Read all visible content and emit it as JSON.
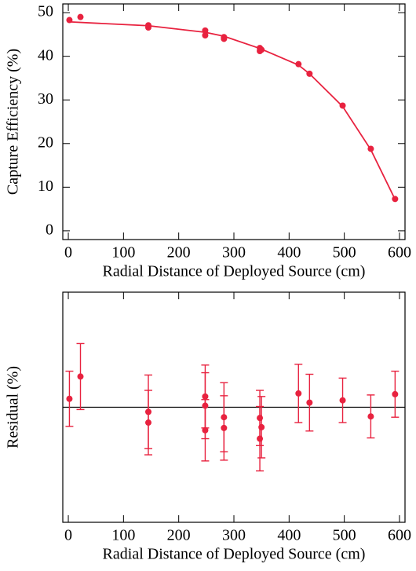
{
  "chart_data": [
    {
      "type": "scatter",
      "ylabel": "Capture Efficiency (%)",
      "xlabel": "Radial Distance of Deployed Source (cm)",
      "color": "#e8223f",
      "xlim": [
        -10,
        610
      ],
      "xticks": [
        0,
        100,
        200,
        300,
        400,
        500,
        600
      ],
      "ylim": [
        -2,
        52
      ],
      "yticks": [
        0,
        10,
        20,
        30,
        40,
        50
      ],
      "points": {
        "x": [
          2,
          22,
          145,
          145,
          248,
          248,
          282,
          282,
          347,
          347,
          350,
          417,
          437,
          497,
          548,
          592
        ],
        "y": [
          48.3,
          49.0,
          47.1,
          46.6,
          45.9,
          44.8,
          44.4,
          44.0,
          41.9,
          41.2,
          41.5,
          38.2,
          36.0,
          28.7,
          18.8,
          7.3
        ]
      },
      "fit": {
        "x": [
          0,
          145,
          248,
          282,
          347,
          417,
          437,
          497,
          548,
          592
        ],
        "y": [
          47.9,
          47.0,
          45.5,
          44.6,
          41.8,
          38.0,
          36.0,
          28.5,
          18.6,
          7.2
        ]
      }
    },
    {
      "type": "errorbar",
      "ylabel": "Residual (%)",
      "xlabel": "Radial Distance of Deployed Source (cm)",
      "color": "#e8223f",
      "xlim": [
        -10,
        610
      ],
      "xticks": [
        0,
        100,
        200,
        300,
        400,
        500,
        600
      ],
      "ylim": [
        -1.5,
        1.5
      ],
      "hline": 0,
      "x": [
        2,
        22,
        145,
        145,
        248,
        248,
        248,
        282,
        282,
        347,
        347,
        350,
        417,
        437,
        497,
        548,
        592
      ],
      "values": [
        0.11,
        0.4,
        -0.06,
        -0.2,
        0.14,
        0.02,
        -0.3,
        -0.13,
        -0.27,
        -0.14,
        -0.41,
        -0.26,
        0.18,
        0.06,
        0.09,
        -0.12,
        0.17
      ],
      "errors": [
        0.36,
        0.43,
        0.48,
        0.42,
        0.41,
        0.43,
        0.4,
        0.45,
        0.42,
        0.36,
        0.42,
        0.4,
        0.38,
        0.37,
        0.29,
        0.28,
        0.3
      ]
    }
  ]
}
